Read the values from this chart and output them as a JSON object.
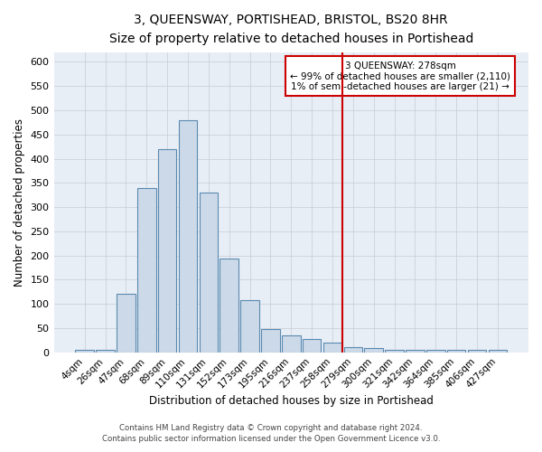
{
  "title": "3, QUEENSWAY, PORTISHEAD, BRISTOL, BS20 8HR",
  "subtitle": "Size of property relative to detached houses in Portishead",
  "xlabel": "Distribution of detached houses by size in Portishead",
  "ylabel": "Number of detached properties",
  "bar_labels": [
    "4sqm",
    "26sqm",
    "47sqm",
    "68sqm",
    "89sqm",
    "110sqm",
    "131sqm",
    "152sqm",
    "173sqm",
    "195sqm",
    "216sqm",
    "237sqm",
    "258sqm",
    "279sqm",
    "300sqm",
    "321sqm",
    "342sqm",
    "364sqm",
    "385sqm",
    "406sqm",
    "427sqm"
  ],
  "bar_values": [
    5,
    5,
    120,
    340,
    420,
    480,
    330,
    193,
    107,
    48,
    35,
    27,
    20,
    10,
    8,
    5,
    5,
    5,
    5,
    5,
    5
  ],
  "bar_color": "#ccd9e8",
  "bar_edge_color": "#5a8ab0",
  "background_color": "#e8eef6",
  "grid_color": "#c8ccd4",
  "red_line_index": 13.0,
  "red_line_color": "#cc0000",
  "annotation_title": "3 QUEENSWAY: 278sqm",
  "annotation_line1": "← 99% of detached houses are smaller (2,110)",
  "annotation_line2": "1% of semi-detached houses are larger (21) →",
  "annotation_box_color": "#ffffff",
  "annotation_box_edge": "#cc0000",
  "footer1": "Contains HM Land Registry data © Crown copyright and database right 2024.",
  "footer2": "Contains public sector information licensed under the Open Government Licence v3.0.",
  "ylim": [
    0,
    620
  ],
  "yticks": [
    0,
    50,
    100,
    150,
    200,
    250,
    300,
    350,
    400,
    450,
    500,
    550,
    600
  ]
}
